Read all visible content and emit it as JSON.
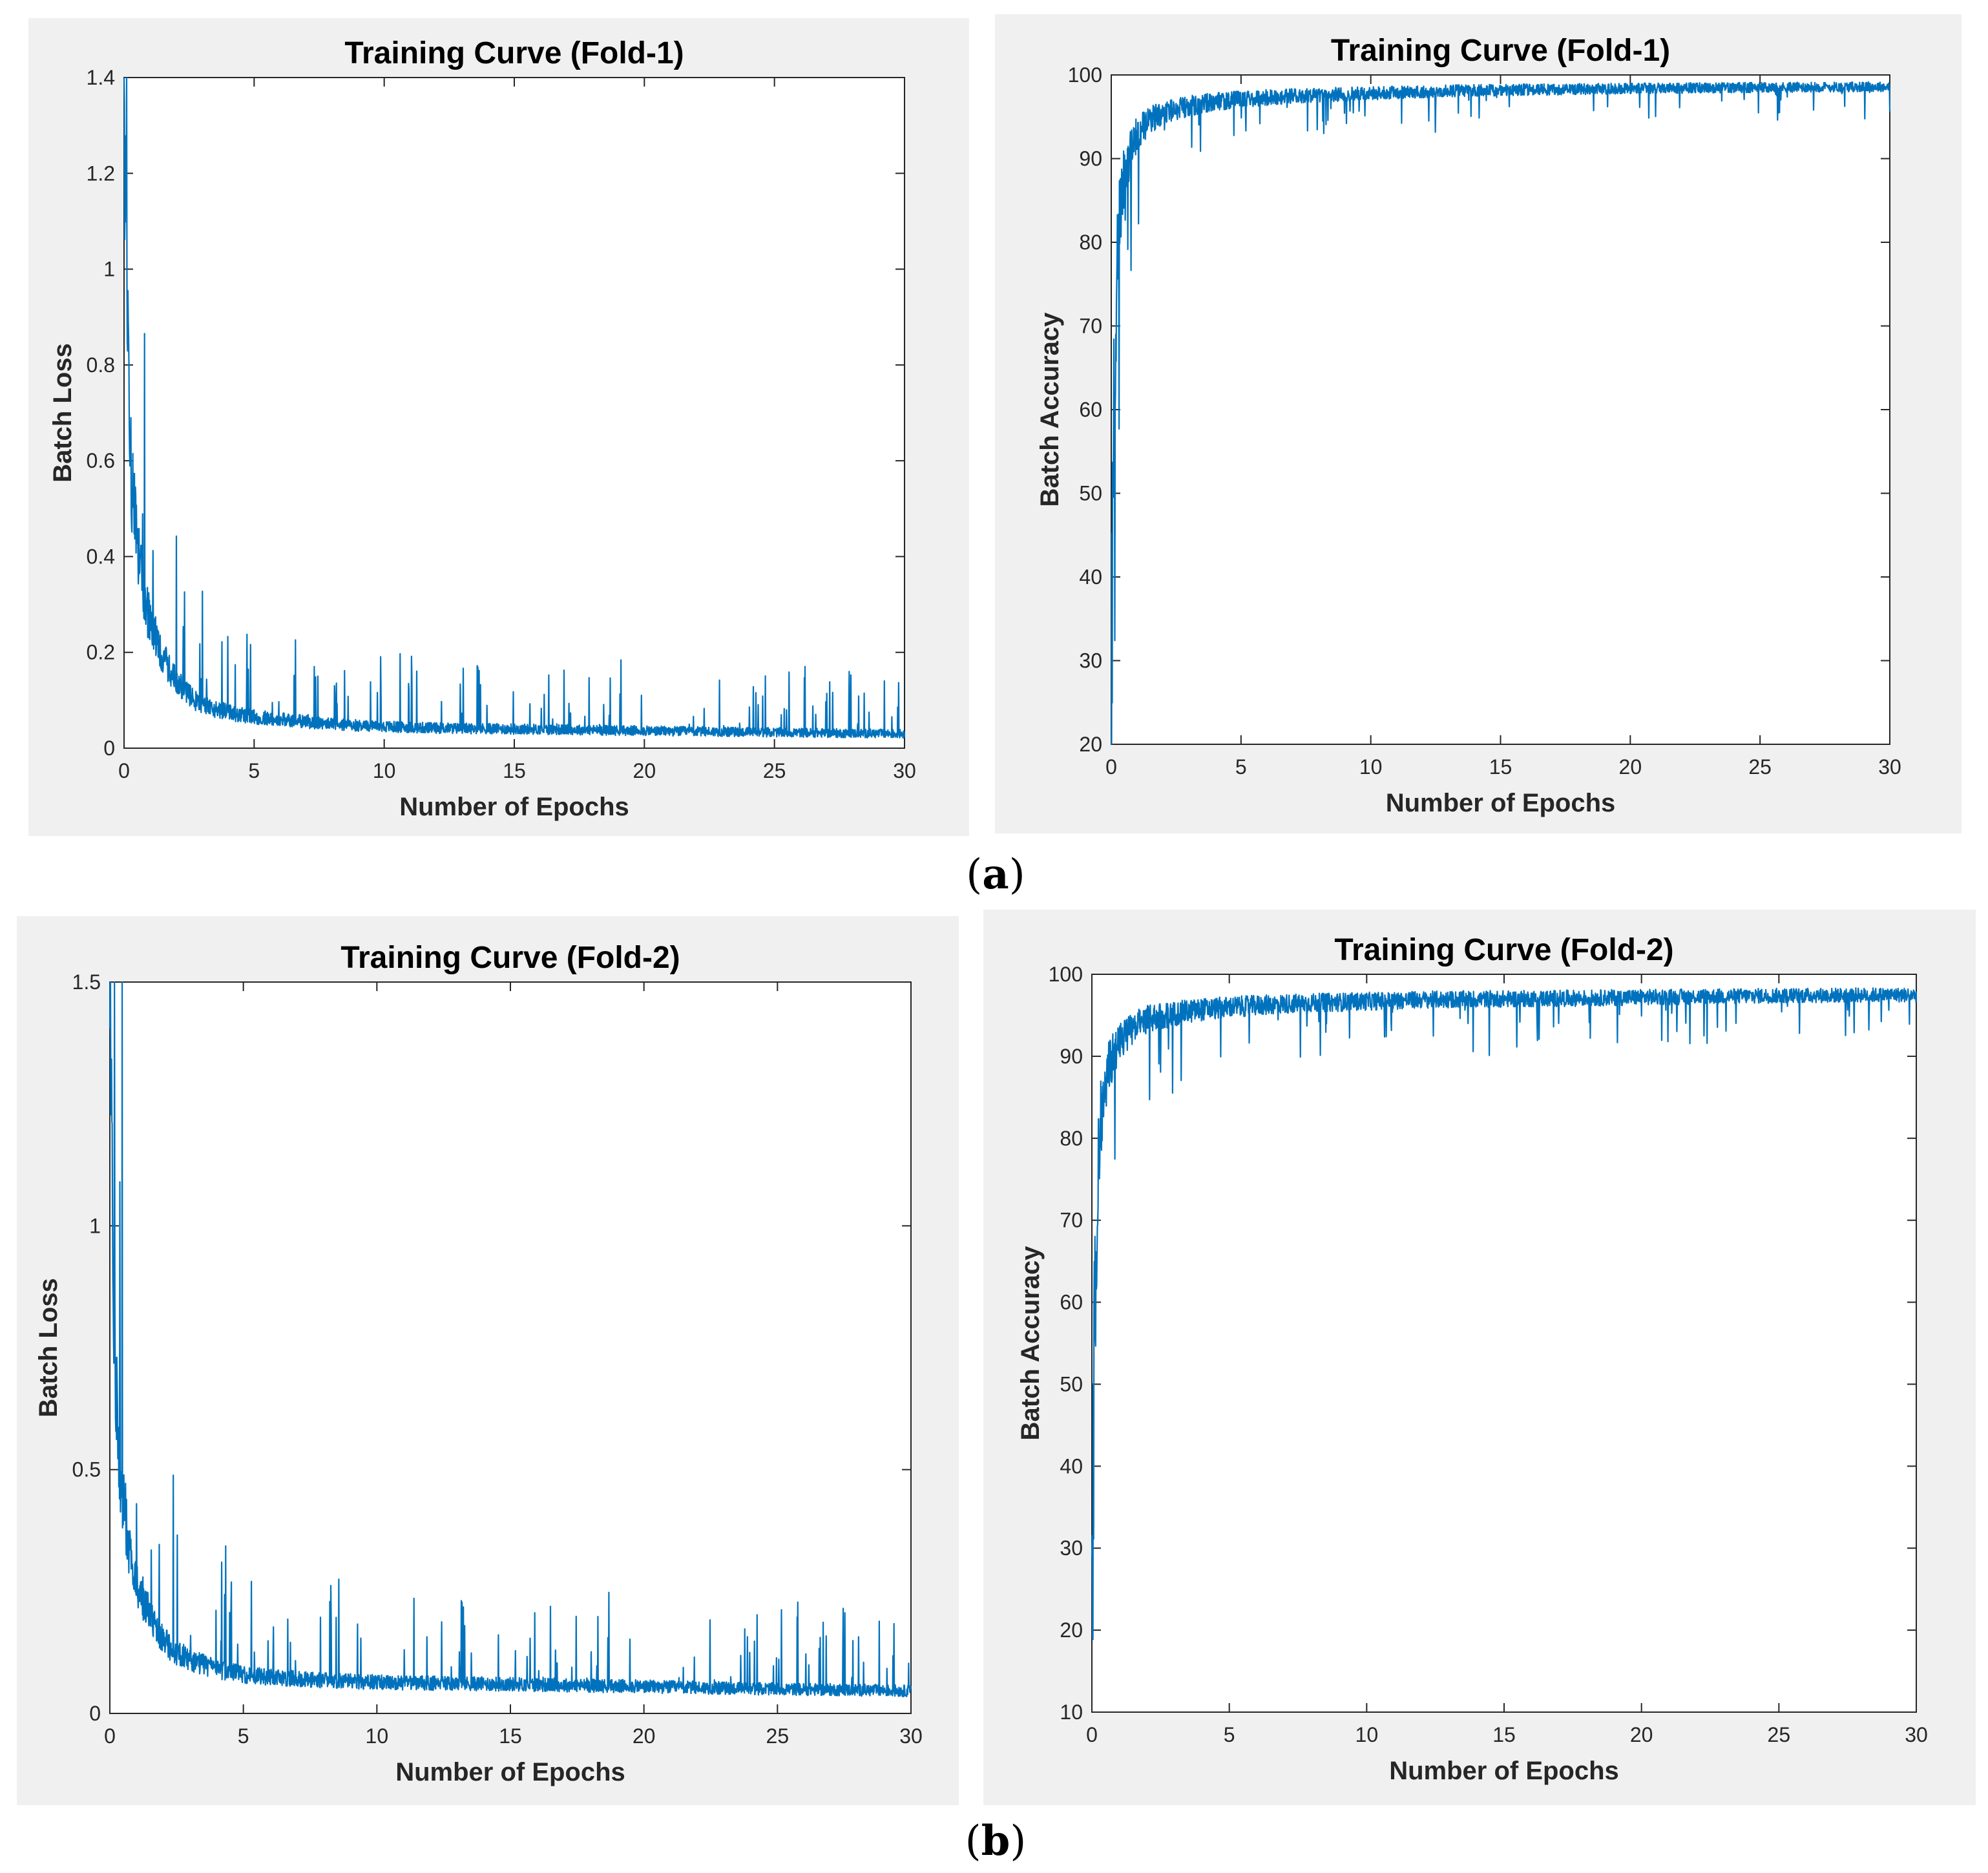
{
  "captions": {
    "a": "a",
    "b": "b"
  },
  "colors": {
    "line": "#0072bd",
    "panel_bg": "#f0f0f0",
    "axes": "#262626"
  },
  "chart_data": [
    {
      "type": "line",
      "title": "Training Curve (Fold-1)",
      "xlabel": "Number of Epochs",
      "ylabel": "Batch Loss",
      "xlim": [
        0,
        30
      ],
      "ylim": [
        0,
        1.4
      ],
      "xticks": [
        "0",
        "5",
        "10",
        "15",
        "20",
        "25",
        "30"
      ],
      "yticks": [
        "0",
        "0.2",
        "0.4",
        "0.6",
        "0.8",
        "1",
        "1.2",
        "1.4"
      ],
      "grid": false,
      "series": [
        {
          "x": [
            0,
            0.1,
            0.2,
            0.3,
            0.5,
            0.75,
            1,
            1.5,
            2,
            2.5,
            3,
            4,
            5,
            6,
            8,
            10,
            12,
            15,
            18,
            20,
            22,
            25,
            28,
            30
          ],
          "y": [
            1.4,
            0.95,
            0.68,
            0.55,
            0.42,
            0.33,
            0.26,
            0.19,
            0.14,
            0.11,
            0.09,
            0.075,
            0.065,
            0.06,
            0.05,
            0.045,
            0.042,
            0.04,
            0.038,
            0.036,
            0.035,
            0.033,
            0.031,
            0.03
          ]
        }
      ]
    },
    {
      "type": "line",
      "title": "Training Curve (Fold-1)",
      "xlabel": "Number of Epochs",
      "ylabel": "Batch Accuracy",
      "xlim": [
        0,
        30
      ],
      "ylim": [
        20,
        100
      ],
      "xticks": [
        "0",
        "5",
        "10",
        "15",
        "20",
        "25",
        "30"
      ],
      "yticks": [
        "20",
        "30",
        "40",
        "50",
        "60",
        "70",
        "80",
        "90",
        "100"
      ],
      "grid": false,
      "series": [
        {
          "x": [
            0,
            0.05,
            0.1,
            0.2,
            0.3,
            0.5,
            0.75,
            1,
            1.5,
            2,
            3,
            4,
            5,
            7,
            10,
            12,
            15,
            18,
            20,
            25,
            30
          ],
          "y": [
            22,
            45,
            60,
            74,
            82,
            88,
            91,
            93,
            94.5,
            95.5,
            96.3,
            96.8,
            97.1,
            97.5,
            97.8,
            98,
            98.2,
            98.3,
            98.4,
            98.5,
            98.6
          ]
        }
      ]
    },
    {
      "type": "line",
      "title": "Training Curve (Fold-2)",
      "xlabel": "Number of Epochs",
      "ylabel": "Batch Loss",
      "xlim": [
        0,
        30
      ],
      "ylim": [
        0,
        1.5
      ],
      "xticks": [
        "0",
        "5",
        "10",
        "15",
        "20",
        "25",
        "30"
      ],
      "yticks": [
        "0",
        "0.5",
        "1",
        "1.5"
      ],
      "grid": false,
      "series": [
        {
          "x": [
            0,
            0.1,
            0.2,
            0.3,
            0.5,
            0.75,
            1,
            1.5,
            2,
            2.5,
            3,
            4,
            5,
            6,
            8,
            10,
            12,
            15,
            18,
            20,
            22,
            25,
            28,
            30
          ],
          "y": [
            1.42,
            1.0,
            0.72,
            0.58,
            0.43,
            0.34,
            0.27,
            0.2,
            0.15,
            0.125,
            0.11,
            0.09,
            0.08,
            0.074,
            0.068,
            0.064,
            0.062,
            0.06,
            0.057,
            0.055,
            0.053,
            0.05,
            0.048,
            0.046
          ]
        }
      ]
    },
    {
      "type": "line",
      "title": "Training Curve (Fold-2)",
      "xlabel": "Number of Epochs",
      "ylabel": "Batch Accuracy",
      "xlim": [
        0,
        30
      ],
      "ylim": [
        10,
        100
      ],
      "xticks": [
        "0",
        "5",
        "10",
        "15",
        "20",
        "25",
        "30"
      ],
      "yticks": [
        "10",
        "20",
        "30",
        "40",
        "50",
        "60",
        "70",
        "80",
        "90",
        "100"
      ],
      "grid": false,
      "series": [
        {
          "x": [
            0,
            0.05,
            0.1,
            0.2,
            0.3,
            0.5,
            0.75,
            1,
            1.5,
            2,
            3,
            4,
            5,
            7,
            10,
            12,
            15,
            18,
            20,
            25,
            30
          ],
          "y": [
            18,
            40,
            58,
            73,
            82,
            87,
            90,
            92,
            93.5,
            94.5,
            95.2,
            95.7,
            96,
            96.4,
            96.7,
            96.9,
            97,
            97.1,
            97.2,
            97.4,
            97.5
          ]
        }
      ]
    }
  ]
}
